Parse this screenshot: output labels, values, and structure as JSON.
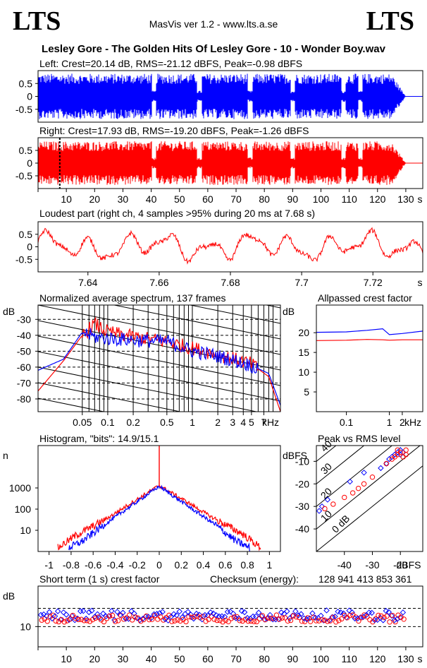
{
  "logo": {
    "left": "LTS",
    "right": "LTS"
  },
  "app_title": "MasVis ver 1.2 - www.lts.a.se",
  "file_title": "Lesley Gore - The Golden Hits Of Lesley Gore - 10 - Wonder Boy.wav",
  "colors": {
    "left": "#0000ff",
    "right": "#ff0000",
    "axis": "#000000"
  },
  "chart_data": [
    {
      "id": "left-waveform",
      "type": "area",
      "title": "Left: Crest=20.14 dB, RMS=-21.12 dBFS, Peak=-0.98 dBFS",
      "y_ticks": [
        "0.5",
        "0",
        "-0.5"
      ],
      "ylim": [
        -1,
        1
      ],
      "xlim": [
        0,
        136
      ],
      "envelope_peak": 0.88,
      "fade_out_start_s": 125,
      "end_s": 130
    },
    {
      "id": "right-waveform",
      "type": "area",
      "title": "Right: Crest=17.93 dB, RMS=-19.20 dBFS, Peak=-1.26 dBFS",
      "y_ticks": [
        "0.5",
        "0",
        "-0.5"
      ],
      "ylim": [
        -1,
        1
      ],
      "xlim": [
        0,
        136
      ],
      "x_ticks": [
        "10",
        "20",
        "30",
        "40",
        "50",
        "60",
        "70",
        "80",
        "90",
        "100",
        "110",
        "120",
        "130",
        "s"
      ],
      "x_tick_values": [
        10,
        20,
        30,
        40,
        50,
        60,
        70,
        80,
        90,
        100,
        110,
        120,
        130
      ],
      "marker_s": 7.68,
      "envelope_peak": 0.86,
      "fade_out_start_s": 125,
      "end_s": 130
    },
    {
      "id": "loudest-part",
      "type": "line",
      "title": "Loudest part (right ch, 4 samples >95% during 20 ms at 7.68 s)",
      "y_ticks": [
        "0.5",
        "0",
        "-0.5"
      ],
      "ylim": [
        -1,
        1
      ],
      "xlim": [
        7.626,
        7.734
      ],
      "x_ticks": [
        "7.64",
        "7.66",
        "7.68",
        "7.7",
        "7.72",
        "s"
      ],
      "x_tick_values": [
        7.64,
        7.66,
        7.68,
        7.7,
        7.72
      ]
    },
    {
      "id": "spectrum",
      "type": "line",
      "title": "Normalized average spectrum, 137 frames",
      "ylabel": "dB",
      "y_ticks": [
        "-30",
        "-40",
        "-50",
        "-60",
        "-70",
        "-80"
      ],
      "y_tick_values": [
        -30,
        -40,
        -50,
        -60,
        -70,
        -80
      ],
      "ylim": [
        -88,
        -21
      ],
      "x_ticks": [
        "0.05",
        "0.1",
        "0.2",
        "0.5",
        "1",
        "2",
        "3",
        "4",
        "5",
        "7",
        "kHz"
      ],
      "x_tick_values": [
        0.05,
        0.1,
        0.2,
        0.5,
        1,
        2,
        3,
        4,
        5,
        7
      ],
      "xlim": [
        0.015,
        11
      ],
      "series": [
        {
          "color": "red",
          "x": [
            0.015,
            0.03,
            0.05,
            0.07,
            0.1,
            0.2,
            0.5,
            1,
            2,
            5,
            8,
            11
          ],
          "y": [
            -75,
            -56,
            -40,
            -33,
            -38,
            -41,
            -44,
            -48,
            -52,
            -58,
            -66,
            -88
          ]
        },
        {
          "color": "blue",
          "x": [
            0.015,
            0.03,
            0.05,
            0.07,
            0.1,
            0.2,
            0.5,
            1,
            2,
            5,
            8,
            11
          ],
          "y": [
            -62,
            -55,
            -38,
            -41,
            -42,
            -43,
            -44,
            -50,
            -53,
            -59,
            -64,
            -84
          ]
        }
      ]
    },
    {
      "id": "allpassed-crest",
      "type": "line",
      "title": "Allpassed crest factor",
      "ylabel": "dB",
      "y_ticks": [
        "20",
        "15",
        "10",
        "5"
      ],
      "y_tick_values": [
        20,
        15,
        10,
        5
      ],
      "ylim": [
        0,
        27
      ],
      "x_ticks": [
        "0.1",
        "1",
        "2",
        "kHz"
      ],
      "x_tick_values": [
        0.1,
        1,
        2
      ],
      "xlim": [
        0.02,
        6
      ],
      "series": [
        {
          "color": "blue",
          "x": [
            0.02,
            0.1,
            0.3,
            0.7,
            1,
            2,
            6
          ],
          "y": [
            20.1,
            20.2,
            20.6,
            21,
            19.5,
            19.8,
            20.4
          ]
        },
        {
          "color": "red",
          "x": [
            0.02,
            0.1,
            0.3,
            0.7,
            1,
            2,
            6
          ],
          "y": [
            18,
            18.1,
            18.3,
            18.2,
            18.1,
            18.2,
            18.2
          ]
        }
      ]
    },
    {
      "id": "histogram",
      "type": "line",
      "title": "Histogram, \"bits\": 14.9/15.1",
      "ylabel": "n",
      "y_ticks": [
        "1000",
        "100",
        "10"
      ],
      "y_tick_values": [
        1000,
        100,
        10
      ],
      "ylim": [
        1,
        100000
      ],
      "x_ticks": [
        "-1",
        "-0.8",
        "-0.6",
        "-0.4",
        "-0.2",
        "0",
        "0.2",
        "0.4",
        "0.6",
        "0.8",
        "1"
      ],
      "x_tick_values": [
        -1,
        -0.8,
        -0.6,
        -0.4,
        -0.2,
        0,
        0.2,
        0.4,
        0.6,
        0.8,
        1
      ],
      "xlim": [
        -1.1,
        1.1
      ],
      "series": [
        {
          "color": "red",
          "x": [
            -0.92,
            -0.75,
            -0.5,
            -0.25,
            0,
            0.25,
            0.5,
            0.75,
            0.92
          ],
          "y": [
            1.5,
            6,
            30,
            200,
            1300,
            220,
            35,
            7,
            1.5
          ]
        },
        {
          "color": "blue",
          "x": [
            -0.82,
            -0.7,
            -0.5,
            -0.25,
            0,
            0.25,
            0.5,
            0.7,
            0.82
          ],
          "y": [
            1.5,
            3,
            18,
            150,
            1200,
            150,
            20,
            3,
            1.5
          ]
        }
      ]
    },
    {
      "id": "peak-vs-rms",
      "type": "scatter",
      "title": "Peak vs RMS level",
      "ylabel": "dBFS",
      "xlabel": "dBFS",
      "y_ticks": [
        "-10",
        "-20",
        "-30",
        "-40"
      ],
      "y_tick_values": [
        -10,
        -20,
        -30,
        -40
      ],
      "ylim": [
        -50,
        -3
      ],
      "x_ticks": [
        "-40",
        "-30",
        "-20"
      ],
      "x_tick_values": [
        -40,
        -30,
        -20
      ],
      "xlim": [
        -50,
        -12
      ],
      "diagonal_labels": [
        "40",
        "30",
        "20",
        "10",
        "0 dB"
      ],
      "diagonal_offsets": [
        40,
        30,
        20,
        10,
        0
      ],
      "series": [
        {
          "color": "blue",
          "points": [
            [
              -49,
              -32
            ],
            [
              -48,
              -30
            ],
            [
              -46,
              -27
            ],
            [
              -38,
              -19
            ],
            [
              -33,
              -15
            ],
            [
              -27,
              -13
            ],
            [
              -25,
              -11
            ],
            [
              -24,
              -9
            ],
            [
              -23,
              -8
            ],
            [
              -22,
              -7
            ],
            [
              -21,
              -6
            ],
            [
              -20,
              -5
            ],
            [
              -20,
              -7
            ],
            [
              -19,
              -6
            ]
          ]
        },
        {
          "color": "red",
          "points": [
            [
              -47,
              -31
            ],
            [
              -44,
              -29
            ],
            [
              -40,
              -26
            ],
            [
              -37,
              -24
            ],
            [
              -35,
              -22
            ],
            [
              -33,
              -20
            ],
            [
              -30,
              -17
            ],
            [
              -25,
              -11
            ],
            [
              -23,
              -9
            ],
            [
              -22,
              -8
            ],
            [
              -21,
              -7
            ],
            [
              -21,
              -5
            ],
            [
              -20,
              -6
            ],
            [
              -19,
              -8
            ],
            [
              -18,
              -7
            ],
            [
              -18,
              -5
            ]
          ]
        }
      ]
    },
    {
      "id": "short-term-crest",
      "type": "scatter",
      "title": "Short term (1 s) crest factor",
      "ylabel": "dB",
      "y_ticks": [
        "10"
      ],
      "y_tick_values": [
        10
      ],
      "ylim": [
        0,
        30
      ],
      "x_ticks": [
        "10",
        "20",
        "30",
        "40",
        "50",
        "60",
        "70",
        "80",
        "90",
        "100",
        "110",
        "120",
        "130",
        "s"
      ],
      "x_tick_values": [
        10,
        20,
        30,
        40,
        50,
        60,
        70,
        80,
        90,
        100,
        110,
        120,
        130
      ],
      "xlim": [
        0,
        136
      ],
      "reference_lines_db": [
        10,
        19
      ]
    }
  ],
  "checksum": {
    "label": "Checksum (energy):",
    "value": "128 941 413 853 361"
  }
}
